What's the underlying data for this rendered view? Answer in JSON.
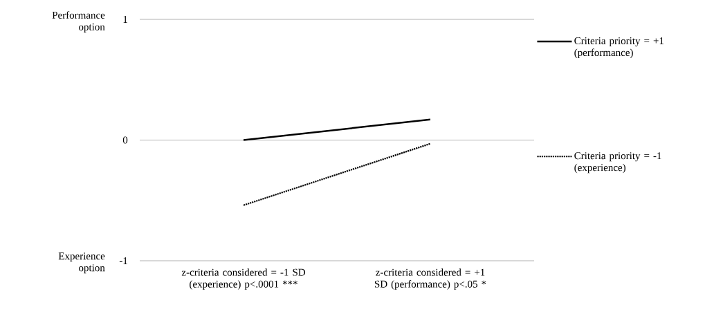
{
  "chart_data": {
    "type": "line",
    "categories": [
      "z-criteria considered = -1 SD (experience) p<.0001 ***",
      "z-criteria considered = +1 SD (performance) p<.05 *"
    ],
    "series": [
      {
        "name": "Criteria priority = +1 (performance)",
        "color": "#000000",
        "line_style": "solid",
        "values": [
          0.0,
          0.17
        ]
      },
      {
        "name": "Criteria priority = -1 (experience)",
        "color": "#000000",
        "line_style": "dotted",
        "values": [
          -0.54,
          -0.03
        ]
      }
    ],
    "ylim": [
      -1,
      1
    ],
    "yticks": [
      -1,
      0,
      1
    ],
    "grid": "y",
    "legend": "right",
    "marker": "none",
    "annotations": [
      "Performance option",
      "Experience option"
    ]
  }
}
